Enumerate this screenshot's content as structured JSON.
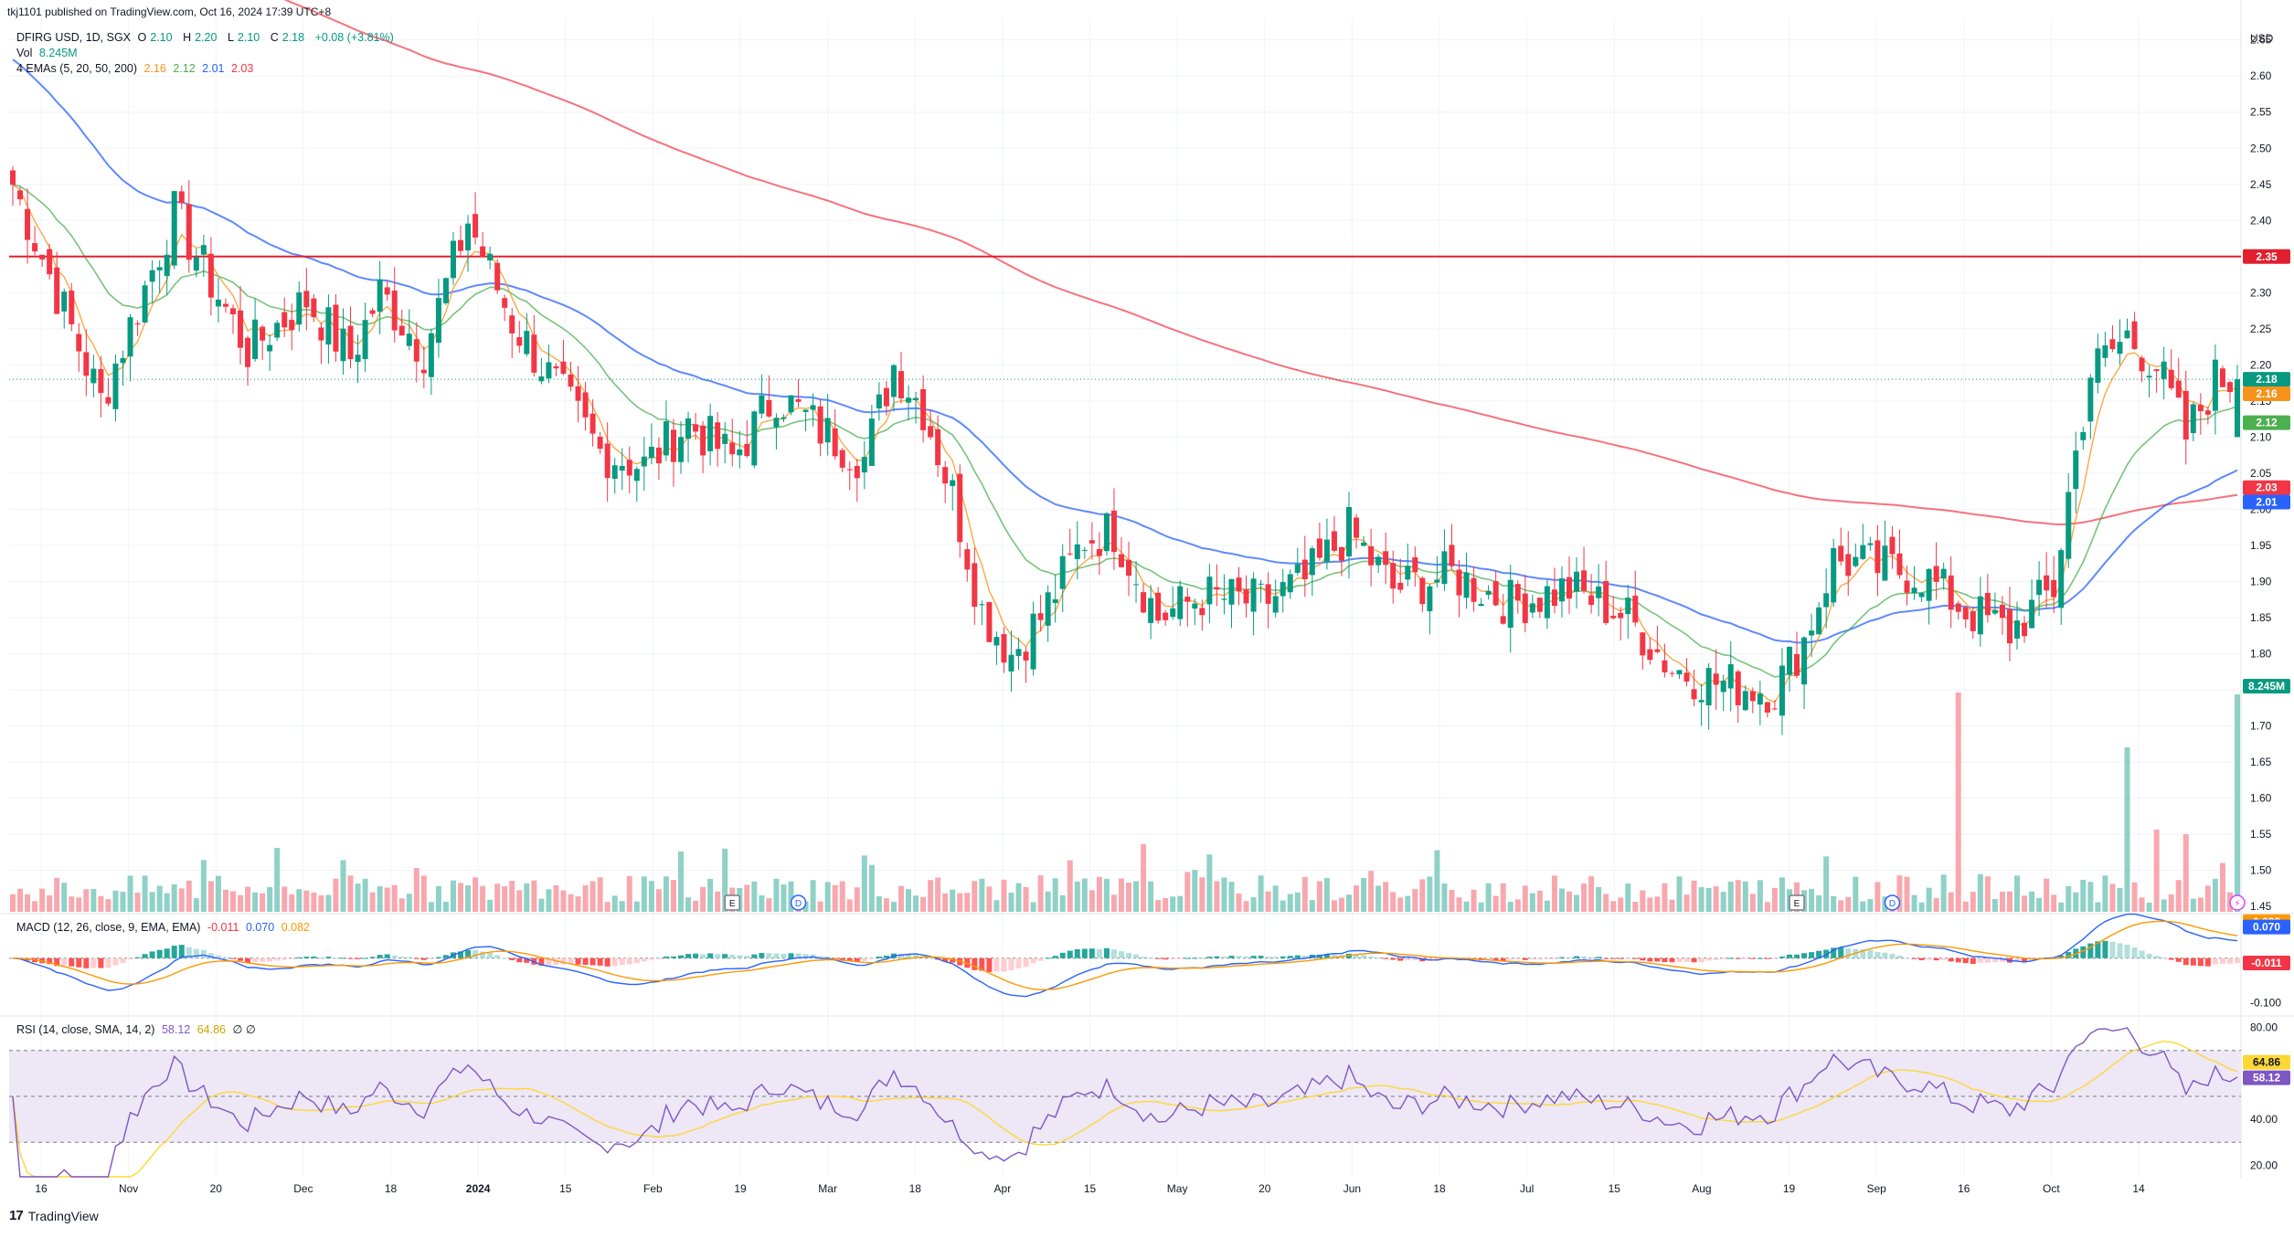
{
  "header": {
    "published": "tkj1101 published on TradingView.com, Oct 16, 2024 17:39 UTC+8"
  },
  "legend": {
    "symbol": "DFIRG USD, 1D, SGX",
    "o_label": "O",
    "o_value": "2.10",
    "h_label": "H",
    "h_value": "2.20",
    "l_label": "L",
    "l_value": "2.10",
    "c_label": "C",
    "c_value": "2.18",
    "change": "+0.08 (+3.81%)",
    "vol_label": "Vol",
    "vol_value": "8.245M",
    "ema_label": "4 EMAs (5, 20, 50, 200)",
    "ema_values": [
      "2.16",
      "2.12",
      "2.01",
      "2.03"
    ],
    "macd_label": "MACD (12, 26, close, 9, EMA, EMA)",
    "macd_values": [
      "-0.011",
      "0.070",
      "0.082"
    ],
    "rsi_label": "RSI (14, close, SMA, 14, 2)",
    "rsi_values": [
      "58.12",
      "64.86"
    ],
    "rsi_extra": "∅ ∅"
  },
  "colors": {
    "up": "#089981",
    "down": "#f23645",
    "vol_up": "#8fd1c7",
    "vol_down": "#f7a8ae",
    "ema5": "#f7931a",
    "ema20": "#4caf50",
    "ema50": "#2962ff",
    "ema200": "#f23645",
    "resistance": "#e0202f",
    "macd": "#2962ff",
    "signal": "#ff9800",
    "rsi": "#7e57c2",
    "rsi_ma": "#fdd835",
    "rsi_band": "#ede7f6",
    "grid": "#f0f3fa",
    "axis_text": "#131722"
  },
  "price_axis": {
    "currency": "USD",
    "ticks": [
      "2.65",
      "2.60",
      "2.55",
      "2.50",
      "2.45",
      "2.40",
      "2.35",
      "2.30",
      "2.25",
      "2.20",
      "2.15",
      "2.10",
      "2.05",
      "2.00",
      "1.95",
      "1.90",
      "1.85",
      "1.80",
      "1.75",
      "1.70",
      "1.65",
      "1.60",
      "1.55",
      "1.50",
      "1.45"
    ],
    "ylim": [
      1.44,
      2.68
    ]
  },
  "price_tags": [
    {
      "label": "2.35",
      "value": 2.35,
      "color": "#e0202f"
    },
    {
      "label": "2.18",
      "value": 2.18,
      "color": "#089981"
    },
    {
      "label": "2.16",
      "value": 2.16,
      "color": "#f7931a"
    },
    {
      "label": "2.12",
      "value": 2.12,
      "color": "#4caf50"
    },
    {
      "label": "2.03",
      "value": 2.03,
      "color": "#f23645"
    },
    {
      "label": "2.01",
      "value": 2.01,
      "color": "#2962ff"
    },
    {
      "label": "8.245M",
      "value": 1.755,
      "color": "#089981"
    }
  ],
  "macd_axis": {
    "ticks": [
      "-0.100"
    ],
    "ylim": [
      -0.13,
      0.1
    ],
    "tags": [
      {
        "label": "0.082",
        "value": 0.082,
        "color": "#ff9800"
      },
      {
        "label": "0.070",
        "value": 0.07,
        "color": "#2962ff"
      },
      {
        "label": "-0.011",
        "value": -0.011,
        "color": "#f23645"
      }
    ]
  },
  "rsi_axis": {
    "ticks": [
      "80.00",
      "40.00",
      "20.00"
    ],
    "ylim": [
      15,
      85
    ],
    "tags": [
      {
        "label": "64.86",
        "value": 64.86,
        "color": "#fdd835"
      },
      {
        "label": "58.12",
        "value": 58.12,
        "color": "#7e57c2"
      }
    ]
  },
  "x_axis": {
    "labels": [
      "16",
      "Nov",
      "20",
      "Dec",
      "18",
      "2024",
      "15",
      "Feb",
      "19",
      "Mar",
      "18",
      "Apr",
      "15",
      "May",
      "20",
      "Jun",
      "18",
      "Jul",
      "15",
      "Aug",
      "19",
      "Sep",
      "16",
      "Oct",
      "14"
    ]
  },
  "events": [
    {
      "label": "E",
      "kind": "earnings",
      "bar": 98
    },
    {
      "label": "D",
      "kind": "dividend",
      "bar": 107
    },
    {
      "label": "E",
      "kind": "earnings",
      "bar": 243
    },
    {
      "label": "D",
      "kind": "dividend",
      "bar": 256
    },
    {
      "label": "⚡",
      "kind": "flash",
      "bar": 303
    }
  ],
  "logo": {
    "text": "TradingView",
    "mark": "17"
  },
  "chart_data": {
    "type": "candlestick",
    "resistance_level": 2.35,
    "ema_periods": [
      5,
      20,
      50,
      200
    ],
    "last": {
      "open": 2.1,
      "high": 2.2,
      "low": 2.1,
      "close": 2.18,
      "volume": "8.245M"
    },
    "rsi_bands": [
      70,
      50,
      30
    ],
    "anchors": [
      [
        0,
        2.45
      ],
      [
        12,
        2.15
      ],
      [
        22,
        2.41
      ],
      [
        32,
        2.22
      ],
      [
        40,
        2.29
      ],
      [
        46,
        2.21
      ],
      [
        50,
        2.3
      ],
      [
        56,
        2.22
      ],
      [
        62,
        2.4
      ],
      [
        68,
        2.26
      ],
      [
        74,
        2.17
      ],
      [
        80,
        2.08
      ],
      [
        86,
        2.06
      ],
      [
        92,
        2.12
      ],
      [
        98,
        2.07
      ],
      [
        104,
        2.16
      ],
      [
        110,
        2.11
      ],
      [
        116,
        2.07
      ],
      [
        120,
        2.2
      ],
      [
        124,
        2.14
      ],
      [
        128,
        2.02
      ],
      [
        132,
        1.86
      ],
      [
        136,
        1.8
      ],
      [
        140,
        1.85
      ],
      [
        146,
        1.96
      ],
      [
        150,
        1.97
      ],
      [
        156,
        1.85
      ],
      [
        162,
        1.88
      ],
      [
        170,
        1.87
      ],
      [
        176,
        1.9
      ],
      [
        182,
        1.97
      ],
      [
        188,
        1.89
      ],
      [
        196,
        1.91
      ],
      [
        204,
        1.87
      ],
      [
        212,
        1.89
      ],
      [
        220,
        1.85
      ],
      [
        226,
        1.78
      ],
      [
        232,
        1.76
      ],
      [
        240,
        1.75
      ],
      [
        244,
        1.82
      ],
      [
        248,
        1.93
      ],
      [
        254,
        1.92
      ],
      [
        260,
        1.91
      ],
      [
        266,
        1.86
      ],
      [
        272,
        1.83
      ],
      [
        278,
        1.89
      ],
      [
        280,
        2.02
      ],
      [
        283,
        2.19
      ],
      [
        288,
        2.24
      ],
      [
        292,
        2.2
      ],
      [
        296,
        2.1
      ],
      [
        300,
        2.18
      ]
    ]
  }
}
